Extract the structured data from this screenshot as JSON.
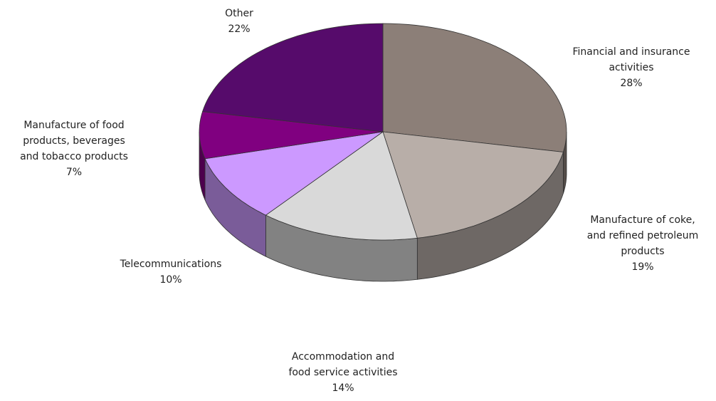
{
  "chart_data": {
    "type": "pie",
    "categories": [
      "Financial and insurance activities",
      "Manufacture of coke, and refined petroleum products",
      "Accommodation and food service activities",
      "Telecommunications",
      "Manufacture of food products, beverages and tobacco products",
      "Other"
    ],
    "values": [
      28,
      19,
      14,
      10,
      7,
      22
    ],
    "value_labels": [
      "28%",
      "19%",
      "14%",
      "10%",
      "7%",
      "22%"
    ],
    "colors": [
      "#8c7f78",
      "#b8aea8",
      "#d9d9d9",
      "#cc99ff",
      "#800080",
      "#560b6b"
    ]
  }
}
